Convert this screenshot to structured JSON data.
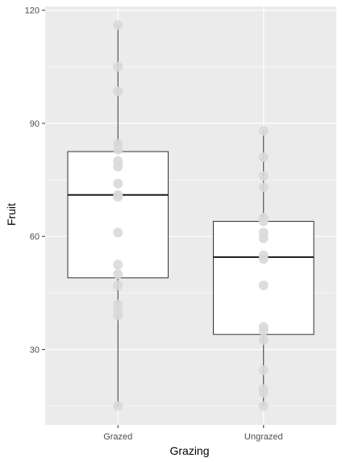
{
  "chart_data": {
    "type": "boxplot",
    "title": "",
    "xlabel": "Grazing",
    "ylabel": "Fruit",
    "categories": [
      "Grazed",
      "Ungrazed"
    ],
    "ylim": [
      10,
      121
    ],
    "yticks": [
      30,
      60,
      90,
      120
    ],
    "grid": true,
    "colors": {
      "panel_background": "#ebebeb",
      "grid_major": "#ffffff",
      "box_fill": "#ffffff",
      "box_stroke": "#333333",
      "whisker": "#333333",
      "median": "#1a1a1a",
      "point_fill": "#d9d9d9",
      "axis_text": "#4d4d4d"
    },
    "boxes": [
      {
        "category": "Grazed",
        "min": 15,
        "q1": 49,
        "median": 71,
        "q3": 82.5,
        "max": 116
      },
      {
        "category": "Ungrazed",
        "min": 15,
        "q1": 34,
        "median": 54.5,
        "q3": 64,
        "max": 88
      }
    ],
    "points": [
      {
        "category": "Grazed",
        "values": [
          116,
          105,
          98.5,
          84.5,
          83,
          80,
          78.5,
          74,
          71,
          70.5,
          61,
          52.5,
          50,
          47,
          42,
          40.5,
          39,
          15
        ]
      },
      {
        "category": "Ungrazed",
        "values": [
          88,
          81,
          76,
          73,
          65,
          64,
          61,
          59.5,
          55,
          54,
          47,
          36,
          35,
          32.5,
          24.5,
          19.5,
          18.5,
          15
        ]
      }
    ]
  }
}
